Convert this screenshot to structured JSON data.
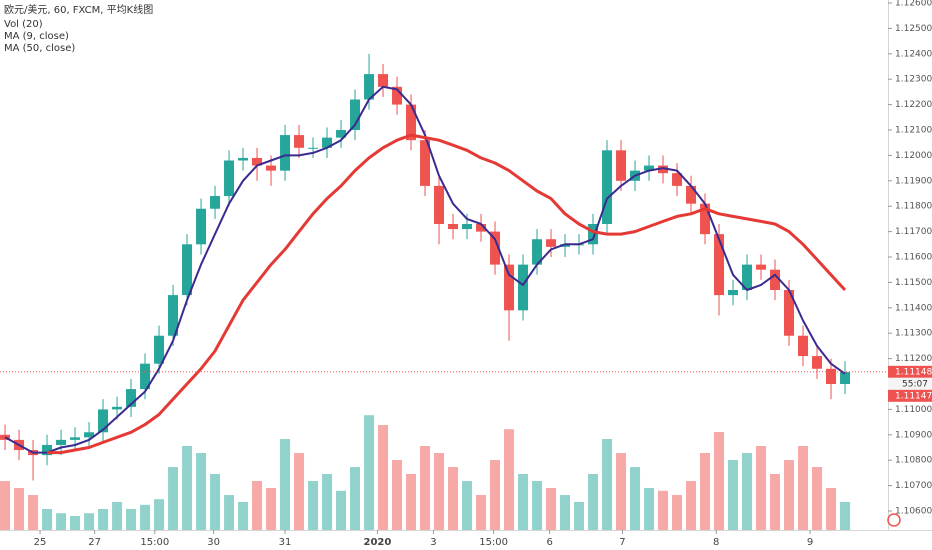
{
  "chart_data": {
    "type": "candlestick",
    "title": "欧元/美元, 60, FXCM, 平均K线图",
    "xlim": [
      -0.36,
      63.07
    ],
    "ylim": [
      1.106,
      1.126
    ],
    "yticks": [
      {
        "value": 1.106,
        "label": "1.10600"
      },
      {
        "value": 1.107,
        "label": "1.10700"
      },
      {
        "value": 1.108,
        "label": "1.10800"
      },
      {
        "value": 1.109,
        "label": "1.10900"
      },
      {
        "value": 1.11,
        "label": "1.11000"
      },
      {
        "value": 1.111,
        "label": "1.11100"
      },
      {
        "value": 1.112,
        "label": "1.11200"
      },
      {
        "value": 1.113,
        "label": "1.11300"
      },
      {
        "value": 1.114,
        "label": "1.11400"
      },
      {
        "value": 1.115,
        "label": "1.11500"
      },
      {
        "value": 1.116,
        "label": "1.11600"
      },
      {
        "value": 1.117,
        "label": "1.11700"
      },
      {
        "value": 1.118,
        "label": "1.11800"
      },
      {
        "value": 1.119,
        "label": "1.11900"
      },
      {
        "value": 1.12,
        "label": "1.12000"
      },
      {
        "value": 1.121,
        "label": "1.12100"
      },
      {
        "value": 1.122,
        "label": "1.12200"
      },
      {
        "value": 1.123,
        "label": "1.12300"
      },
      {
        "value": 1.124,
        "label": "1.12400"
      },
      {
        "value": 1.125,
        "label": "1.12500"
      },
      {
        "value": 1.126,
        "label": "1.12600"
      }
    ],
    "xticks": [
      {
        "value": 2.5,
        "label": "25"
      },
      {
        "value": 6.4,
        "label": "27"
      },
      {
        "value": 10.7,
        "label": "15:00"
      },
      {
        "value": 14.9,
        "label": "30"
      },
      {
        "value": 20,
        "label": "31"
      },
      {
        "value": 26.6,
        "label": "2020"
      },
      {
        "value": 30.6,
        "label": "3"
      },
      {
        "value": 34.9,
        "label": "15:00"
      },
      {
        "value": 38.9,
        "label": "6"
      },
      {
        "value": 44.1,
        "label": "7"
      },
      {
        "value": 50.8,
        "label": "8"
      },
      {
        "value": 57.5,
        "label": "9"
      }
    ],
    "up_color": "#26a69a",
    "down_color": "#ef5350",
    "open": [
      1.109,
      1.1088,
      1.1084,
      1.1082,
      1.1086,
      1.1088,
      1.1089,
      1.1091,
      1.11,
      1.1101,
      1.1108,
      1.1118,
      1.1129,
      1.1145,
      1.1165,
      1.1179,
      1.1184,
      1.1198,
      1.1199,
      1.1196,
      1.1194,
      1.1208,
      1.1203,
      1.1203,
      1.1207,
      1.121,
      1.1222,
      1.1232,
      1.1227,
      1.122,
      1.1206,
      1.1188,
      1.1173,
      1.1171,
      1.1173,
      1.117,
      1.1157,
      1.1139,
      1.1157,
      1.1167,
      1.1164,
      1.1165,
      1.1165,
      1.1173,
      1.1202,
      1.119,
      1.1194,
      1.1196,
      1.1193,
      1.1188,
      1.1181,
      1.1169,
      1.1145,
      1.1147,
      1.1157,
      1.1155,
      1.1147,
      1.1129,
      1.1121,
      1.1116,
      1.111
    ],
    "high": [
      1.1094,
      1.1092,
      1.1088,
      1.109,
      1.1092,
      1.1093,
      1.1095,
      1.1104,
      1.1105,
      1.1112,
      1.1122,
      1.1133,
      1.1149,
      1.1169,
      1.1183,
      1.1188,
      1.1202,
      1.1203,
      1.1203,
      1.12,
      1.1212,
      1.1212,
      1.1207,
      1.1211,
      1.1214,
      1.1226,
      1.124,
      1.1236,
      1.1231,
      1.1224,
      1.121,
      1.1192,
      1.1177,
      1.1177,
      1.1177,
      1.1174,
      1.1161,
      1.1161,
      1.1171,
      1.1171,
      1.1169,
      1.1169,
      1.1177,
      1.1206,
      1.1206,
      1.1198,
      1.12,
      1.12,
      1.1197,
      1.1192,
      1.1185,
      1.1173,
      1.1151,
      1.1161,
      1.1161,
      1.1159,
      1.1151,
      1.1133,
      1.1125,
      1.112,
      1.1119
    ],
    "low": [
      1.1084,
      1.108,
      1.1072,
      1.1078,
      1.1082,
      1.1084,
      1.1085,
      1.1087,
      1.1096,
      1.1097,
      1.1104,
      1.1114,
      1.1125,
      1.1141,
      1.1161,
      1.1175,
      1.118,
      1.1194,
      1.119,
      1.1188,
      1.119,
      1.1199,
      1.1199,
      1.1199,
      1.1203,
      1.1206,
      1.1218,
      1.1223,
      1.1216,
      1.1202,
      1.1184,
      1.1165,
      1.1167,
      1.1167,
      1.1166,
      1.1153,
      1.1127,
      1.1135,
      1.1153,
      1.116,
      1.116,
      1.1161,
      1.1161,
      1.1169,
      1.1186,
      1.1186,
      1.119,
      1.1189,
      1.1184,
      1.1177,
      1.1165,
      1.1137,
      1.1141,
      1.1143,
      1.1151,
      1.1143,
      1.1125,
      1.1117,
      1.1112,
      1.1104,
      1.1106
    ],
    "close": [
      1.1088,
      1.1084,
      1.1082,
      1.1086,
      1.1088,
      1.1089,
      1.1091,
      1.11,
      1.1101,
      1.1108,
      1.1118,
      1.1129,
      1.1145,
      1.1165,
      1.1179,
      1.1184,
      1.1198,
      1.1199,
      1.1196,
      1.1194,
      1.1208,
      1.1203,
      1.1203,
      1.1207,
      1.121,
      1.1222,
      1.1232,
      1.1227,
      1.122,
      1.1206,
      1.1188,
      1.1173,
      1.1171,
      1.1173,
      1.117,
      1.1157,
      1.1139,
      1.1157,
      1.1167,
      1.1164,
      1.1165,
      1.1165,
      1.1173,
      1.1202,
      1.119,
      1.1194,
      1.1196,
      1.1193,
      1.1188,
      1.1181,
      1.1169,
      1.1145,
      1.1147,
      1.1157,
      1.1155,
      1.1147,
      1.1129,
      1.1121,
      1.1116,
      1.111,
      1.11147
    ],
    "volume": {
      "name": "Vol (20)",
      "ylim": [
        0,
        100
      ],
      "values": [
        35,
        30,
        25,
        15,
        12,
        10,
        12,
        15,
        20,
        15,
        18,
        22,
        45,
        60,
        55,
        40,
        25,
        20,
        35,
        30,
        65,
        55,
        35,
        40,
        28,
        45,
        82,
        75,
        50,
        40,
        60,
        55,
        45,
        35,
        25,
        50,
        72,
        40,
        35,
        30,
        25,
        20,
        40,
        65,
        55,
        45,
        30,
        28,
        25,
        35,
        55,
        70,
        50,
        55,
        60,
        40,
        50,
        60,
        45,
        30,
        20
      ]
    },
    "series": [
      {
        "name": "MA (9, close)",
        "color": "#3b2a8f",
        "values": [
          1.1089,
          1.1086,
          1.1083,
          1.1083,
          1.1085,
          1.1086,
          1.1088,
          1.1092,
          1.1097,
          1.1102,
          1.1107,
          1.1116,
          1.1127,
          1.1143,
          1.1157,
          1.1169,
          1.1181,
          1.119,
          1.1196,
          1.1198,
          1.12,
          1.12,
          1.1201,
          1.1203,
          1.1206,
          1.1212,
          1.1222,
          1.1227,
          1.1226,
          1.122,
          1.1208,
          1.1192,
          1.1181,
          1.1175,
          1.1173,
          1.1167,
          1.1153,
          1.1149,
          1.1157,
          1.1163,
          1.1165,
          1.1165,
          1.1167,
          1.1183,
          1.1188,
          1.1192,
          1.1194,
          1.1195,
          1.1194,
          1.1188,
          1.1181,
          1.1167,
          1.1153,
          1.1147,
          1.1149,
          1.1153,
          1.1147,
          1.1135,
          1.1125,
          1.1118,
          1.1114
        ]
      },
      {
        "name": "MA (50, close)",
        "color": "#e53935",
        "values": [
          null,
          null,
          null,
          1.1083,
          1.1083,
          1.1084,
          1.1085,
          1.1087,
          1.1089,
          1.1091,
          1.1094,
          1.1098,
          1.1104,
          1.111,
          1.1116,
          1.1123,
          1.1133,
          1.1143,
          1.115,
          1.1157,
          1.1163,
          1.117,
          1.1177,
          1.1183,
          1.1188,
          1.1194,
          1.1199,
          1.1203,
          1.1206,
          1.1208,
          1.1207,
          1.1206,
          1.1204,
          1.1202,
          1.1199,
          1.1197,
          1.1194,
          1.119,
          1.1186,
          1.1183,
          1.1177,
          1.1173,
          1.117,
          1.1169,
          1.1169,
          1.117,
          1.1172,
          1.1174,
          1.1176,
          1.1177,
          1.1179,
          1.1177,
          1.1176,
          1.1175,
          1.1174,
          1.1173,
          1.117,
          1.1165,
          1.1159,
          1.1153,
          1.1147
        ]
      }
    ],
    "last_price": {
      "value": 1.11148,
      "label": "1.11148"
    },
    "countdown": "55:07",
    "last_close_label": "1.11147"
  }
}
